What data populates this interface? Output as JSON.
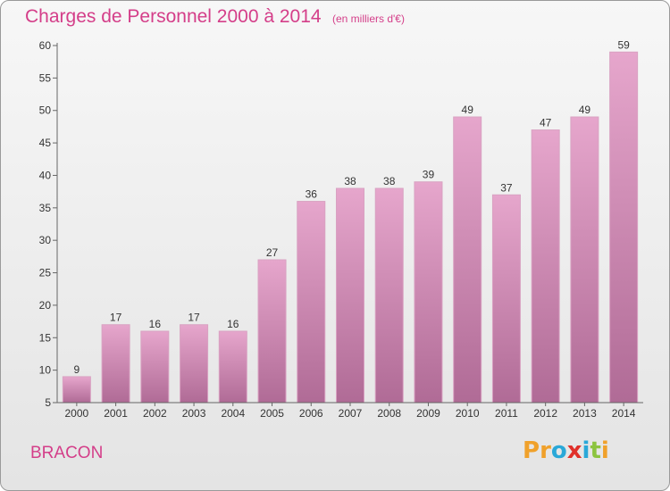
{
  "header": {
    "title": "Charges de Personnel 2000 à 2014",
    "subtitle": "(en milliers d'€)"
  },
  "footer": {
    "commune": "BRACON",
    "logo_text": "Proxiti"
  },
  "colors": {
    "title": "#d43e89",
    "bar_top": "#e6a6cc",
    "bar_bottom": "#b06b96",
    "logo_letters": [
      "#f0a12b",
      "#f0a12b",
      "#2aa8d8",
      "#e0302a",
      "#2aa8d8",
      "#8cc43f",
      "#f0a12b"
    ]
  },
  "chart_data": {
    "type": "bar",
    "title": "Charges de Personnel 2000 à 2014",
    "subtitle": "(en milliers d'€)",
    "xlabel": "",
    "ylabel": "",
    "categories": [
      "2000",
      "2001",
      "2002",
      "2003",
      "2004",
      "2005",
      "2006",
      "2007",
      "2008",
      "2009",
      "2010",
      "2011",
      "2012",
      "2013",
      "2014"
    ],
    "values": [
      9,
      17,
      16,
      17,
      16,
      27,
      36,
      38,
      38,
      39,
      49,
      37,
      47,
      49,
      59
    ],
    "ylim": [
      5,
      60
    ],
    "yticks": [
      5,
      10,
      15,
      20,
      25,
      30,
      35,
      40,
      45,
      50,
      55,
      60
    ],
    "grid": false,
    "legend": "none"
  }
}
